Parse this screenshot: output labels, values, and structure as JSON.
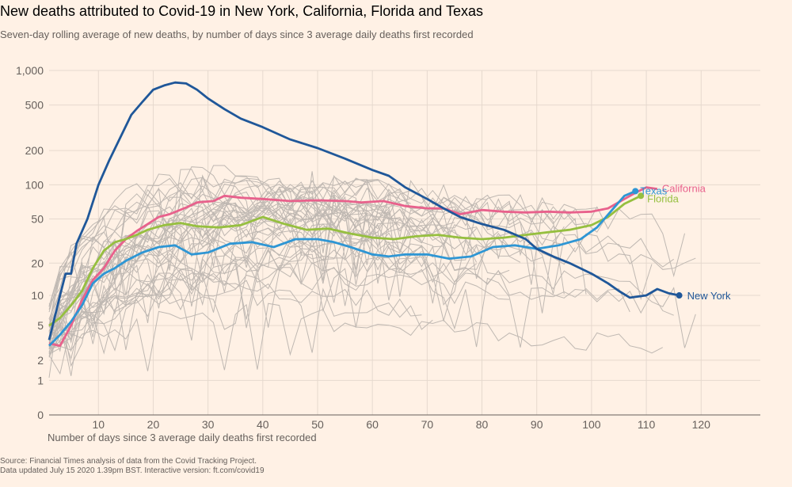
{
  "title": "New deaths attributed to Covid-19 in New York, California, Florida and Texas",
  "subtitle": "Seven-day rolling average of new deaths, by number of days since 3 average daily deaths first recorded",
  "footer": {
    "source": "Source: Financial Times analysis of data from the Covid Tracking Project.",
    "updated": "Data updated July 15 2020 1.39pm BST. Interactive version: ft.com/covid19"
  },
  "colors": {
    "background": "#fff1e5",
    "new_york": "#1f5799",
    "california": "#e8618c",
    "florida": "#96bf3f",
    "texas": "#2e96d4",
    "other_states": "#bfb8b2",
    "grid": "#e6d9ce"
  },
  "chart_data": {
    "type": "line",
    "title": "New deaths attributed to Covid-19 in New York, California, Florida and Texas",
    "xlabel": "Number of days since 3 average daily deaths first recorded",
    "ylabel": "",
    "yscale": "log",
    "xlim": [
      1,
      130
    ],
    "ylim": [
      0,
      1000
    ],
    "x_ticks": [
      10,
      20,
      30,
      40,
      50,
      60,
      70,
      80,
      90,
      100,
      110,
      120
    ],
    "y_ticks": [
      {
        "value": 1000,
        "label": "1,000"
      },
      {
        "value": 500,
        "label": "500"
      },
      {
        "value": 200,
        "label": "200"
      },
      {
        "value": 100,
        "label": "100"
      },
      {
        "value": 50,
        "label": "50"
      },
      {
        "value": 20,
        "label": "20"
      },
      {
        "value": 10,
        "label": "10"
      },
      {
        "value": 5,
        "label": "5"
      },
      {
        "value": 2,
        "label": "2"
      },
      {
        "value": 1,
        "label": "1"
      },
      {
        "value": 0,
        "label": "0"
      }
    ],
    "series": [
      {
        "name": "New York",
        "label": "New York",
        "key": "new_york",
        "points": [
          [
            1,
            3.5
          ],
          [
            2,
            6
          ],
          [
            3,
            10
          ],
          [
            4,
            16
          ],
          [
            5,
            16
          ],
          [
            6,
            30
          ],
          [
            8,
            50
          ],
          [
            10,
            100
          ],
          [
            12,
            165
          ],
          [
            14,
            260
          ],
          [
            16,
            410
          ],
          [
            18,
            530
          ],
          [
            20,
            680
          ],
          [
            22,
            740
          ],
          [
            24,
            785
          ],
          [
            26,
            770
          ],
          [
            28,
            680
          ],
          [
            30,
            570
          ],
          [
            33,
            460
          ],
          [
            36,
            380
          ],
          [
            40,
            320
          ],
          [
            45,
            250
          ],
          [
            50,
            210
          ],
          [
            55,
            170
          ],
          [
            60,
            135
          ],
          [
            63,
            120
          ],
          [
            66,
            95
          ],
          [
            70,
            75
          ],
          [
            73,
            62
          ],
          [
            76,
            52
          ],
          [
            80,
            45
          ],
          [
            84,
            40
          ],
          [
            88,
            33
          ],
          [
            90,
            27
          ],
          [
            93,
            23
          ],
          [
            96,
            20
          ],
          [
            100,
            16
          ],
          [
            103,
            13
          ],
          [
            105,
            11
          ],
          [
            107,
            9.5
          ],
          [
            110,
            10
          ],
          [
            112,
            11.5
          ],
          [
            114,
            10.5
          ],
          [
            116,
            10
          ]
        ],
        "end_marker": true
      },
      {
        "name": "California",
        "label": "California",
        "key": "california",
        "points": [
          [
            1,
            3.2
          ],
          [
            3,
            3
          ],
          [
            5,
            5
          ],
          [
            7,
            9
          ],
          [
            9,
            14
          ],
          [
            11,
            18
          ],
          [
            13,
            26
          ],
          [
            15,
            33
          ],
          [
            17,
            39
          ],
          [
            19,
            45
          ],
          [
            21,
            52
          ],
          [
            23,
            55
          ],
          [
            26,
            63
          ],
          [
            28,
            70
          ],
          [
            31,
            72
          ],
          [
            33,
            80
          ],
          [
            36,
            77
          ],
          [
            40,
            75
          ],
          [
            45,
            72
          ],
          [
            50,
            73
          ],
          [
            55,
            72
          ],
          [
            58,
            70
          ],
          [
            62,
            72
          ],
          [
            66,
            65
          ],
          [
            70,
            62
          ],
          [
            73,
            62
          ],
          [
            76,
            55
          ],
          [
            80,
            60
          ],
          [
            84,
            58
          ],
          [
            88,
            57
          ],
          [
            92,
            58
          ],
          [
            96,
            57
          ],
          [
            100,
            58
          ],
          [
            103,
            62
          ],
          [
            106,
            75
          ],
          [
            108,
            85
          ],
          [
            110,
            95
          ],
          [
            112,
            92
          ]
        ],
        "end_marker": false
      },
      {
        "name": "Florida",
        "label": "Florida",
        "key": "florida",
        "points": [
          [
            1,
            5
          ],
          [
            3,
            6
          ],
          [
            5,
            8
          ],
          [
            7,
            11
          ],
          [
            9,
            18
          ],
          [
            11,
            26
          ],
          [
            13,
            31
          ],
          [
            15,
            33
          ],
          [
            17,
            36
          ],
          [
            19,
            40
          ],
          [
            22,
            44
          ],
          [
            25,
            46
          ],
          [
            28,
            43
          ],
          [
            32,
            42
          ],
          [
            36,
            44
          ],
          [
            40,
            52
          ],
          [
            44,
            45
          ],
          [
            48,
            40
          ],
          [
            52,
            41
          ],
          [
            56,
            37
          ],
          [
            60,
            34
          ],
          [
            64,
            33
          ],
          [
            68,
            35
          ],
          [
            72,
            36
          ],
          [
            76,
            34
          ],
          [
            80,
            33
          ],
          [
            84,
            34
          ],
          [
            88,
            36
          ],
          [
            92,
            38
          ],
          [
            96,
            40
          ],
          [
            100,
            44
          ],
          [
            103,
            52
          ],
          [
            106,
            68
          ],
          [
            109,
            80
          ]
        ],
        "end_marker": true
      },
      {
        "name": "Texas",
        "label": "Texas",
        "key": "texas",
        "points": [
          [
            1,
            3
          ],
          [
            3,
            4
          ],
          [
            5,
            5.5
          ],
          [
            7,
            8
          ],
          [
            9,
            13
          ],
          [
            11,
            16
          ],
          [
            13,
            18
          ],
          [
            15,
            21
          ],
          [
            18,
            25
          ],
          [
            21,
            28
          ],
          [
            24,
            29
          ],
          [
            27,
            24
          ],
          [
            30,
            25
          ],
          [
            34,
            30
          ],
          [
            38,
            31
          ],
          [
            42,
            28
          ],
          [
            46,
            33
          ],
          [
            50,
            33
          ],
          [
            53,
            31
          ],
          [
            56,
            28
          ],
          [
            60,
            24
          ],
          [
            63,
            23
          ],
          [
            66,
            24
          ],
          [
            70,
            24
          ],
          [
            74,
            22
          ],
          [
            78,
            23
          ],
          [
            82,
            28
          ],
          [
            86,
            29
          ],
          [
            90,
            27
          ],
          [
            94,
            29
          ],
          [
            98,
            33
          ],
          [
            101,
            42
          ],
          [
            104,
            62
          ],
          [
            106,
            80
          ],
          [
            108,
            88
          ]
        ],
        "end_marker": true
      }
    ]
  },
  "annotations": {
    "new_york": "New York",
    "california": "California",
    "florida": "Florida",
    "texas": "Texas"
  }
}
